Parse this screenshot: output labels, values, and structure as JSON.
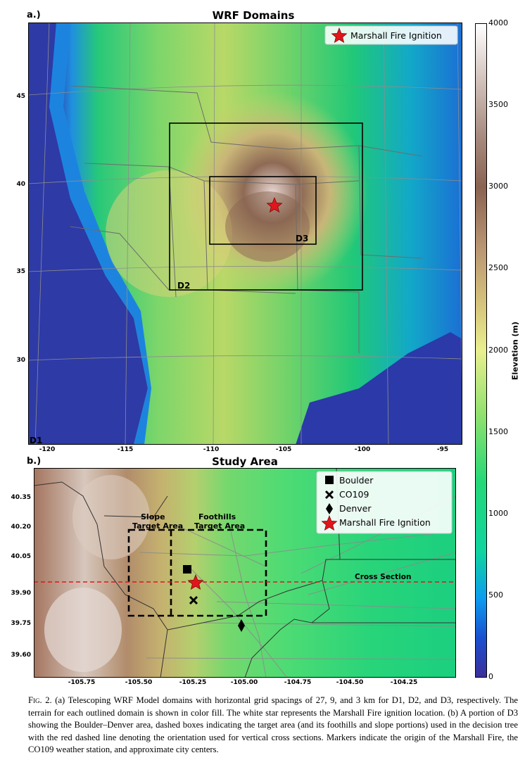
{
  "panel_a": {
    "label": "a.)",
    "title": "WRF Domains",
    "legend": "Marshall Fire Ignition",
    "domain_labels": [
      "D1",
      "D2",
      "D3"
    ],
    "lat_ticks": [
      "45",
      "40",
      "35",
      "30"
    ],
    "lon_ticks": [
      "-120",
      "-115",
      "-110",
      "-105",
      "-100",
      "-95"
    ]
  },
  "panel_b": {
    "label": "b.)",
    "title": "Study Area",
    "legend": [
      "Boulder",
      "CO109",
      "Denver",
      "Marshall Fire Ignition"
    ],
    "slope_label": [
      "Slope",
      "Target Area"
    ],
    "foothills_label": [
      "Foothills",
      "Target Area"
    ],
    "cross_section_label": "Cross Section",
    "lat_ticks": [
      "40.35",
      "40.20",
      "40.05",
      "39.90",
      "39.75",
      "39.60"
    ],
    "lon_ticks": [
      "-105.75",
      "-105.50",
      "-105.25",
      "-105.00",
      "-104.75",
      "-104.50",
      "-104.25"
    ]
  },
  "colorbar": {
    "label": "Elevation (m)",
    "ticks": [
      "4000",
      "3500",
      "3000",
      "2500",
      "2000",
      "1500",
      "1000",
      "500",
      "0"
    ]
  },
  "caption": {
    "fig_label": "Fig. 2.",
    "text": " (a) Telescoping WRF Model domains with horizontal grid spacings of 27, 9, and 3 km for D1, D2, and D3, respectively. The terrain for each outlined domain is shown in color fill. The white star represents the Marshall Fire ignition location. (b) A portion of D3 showing the Boulder–Denver area, dashed boxes indicating the target area (and its foothills and slope portions) used in the decision tree with the red dashed line denoting the orientation used for vertical cross sections. Markers indicate the origin of the Marshall Fire, the CO109 weather station, and approximate city centers."
  }
}
